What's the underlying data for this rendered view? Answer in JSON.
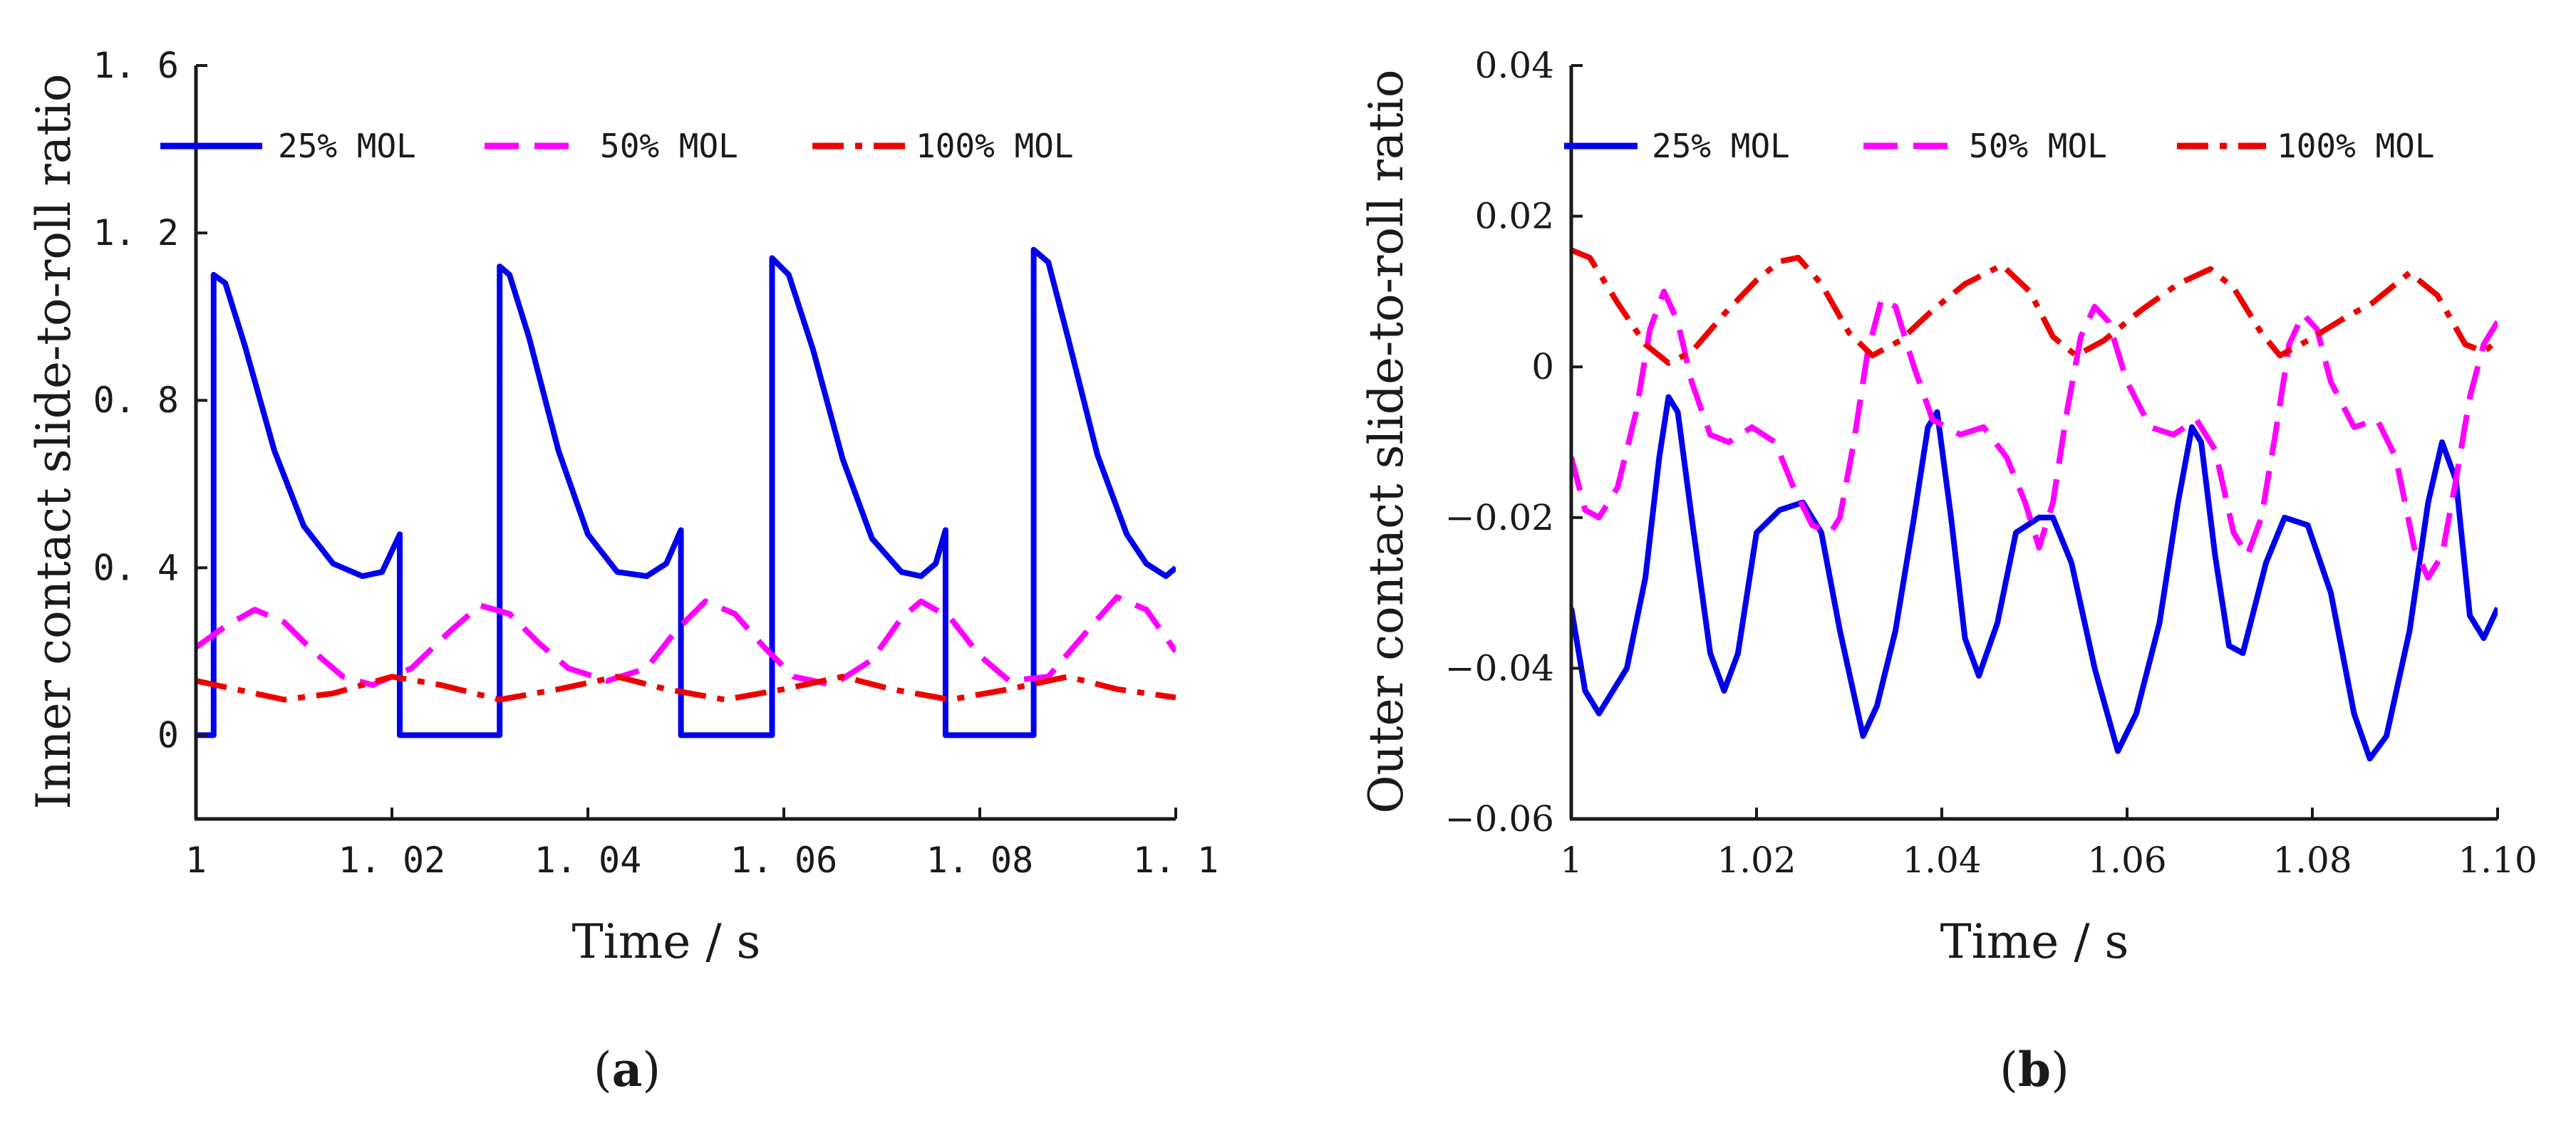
{
  "figure": {
    "panel_a_label": "a",
    "panel_b_label": "b"
  },
  "chart_data": [
    {
      "id": "a",
      "type": "line",
      "title": "",
      "xlabel": "Time / s",
      "ylabel": "Inner contact slide-to-roll ratio",
      "xlim": [
        1.0,
        1.1
      ],
      "ylim": [
        -0.2,
        1.6
      ],
      "xticks": [
        1.0,
        1.02,
        1.04,
        1.06,
        1.08,
        1.1
      ],
      "xtick_labels": [
        "1",
        "1. 02",
        "1. 04",
        "1. 06",
        "1. 08",
        "1. 1"
      ],
      "yticks": [
        0,
        0.4,
        0.8,
        1.2,
        1.6
      ],
      "ytick_labels": [
        "0",
        "0. 4",
        "0. 8",
        "1. 2",
        "1. 6"
      ],
      "series": [
        {
          "name": "25% MOL",
          "color": "#0000ee",
          "dash": "solid",
          "points": [
            [
              1.0,
              0
            ],
            [
              1.0018,
              0
            ],
            [
              1.0018,
              1.1
            ],
            [
              1.003,
              1.08
            ],
            [
              1.005,
              0.93
            ],
            [
              1.008,
              0.68
            ],
            [
              1.011,
              0.5
            ],
            [
              1.014,
              0.41
            ],
            [
              1.017,
              0.38
            ],
            [
              1.019,
              0.39
            ],
            [
              1.0208,
              0.48
            ],
            [
              1.0208,
              0
            ],
            [
              1.031,
              0
            ],
            [
              1.031,
              1.12
            ],
            [
              1.032,
              1.1
            ],
            [
              1.034,
              0.95
            ],
            [
              1.037,
              0.68
            ],
            [
              1.04,
              0.48
            ],
            [
              1.043,
              0.39
            ],
            [
              1.046,
              0.38
            ],
            [
              1.048,
              0.41
            ],
            [
              1.0495,
              0.49
            ],
            [
              1.0495,
              0
            ],
            [
              1.0588,
              0
            ],
            [
              1.0588,
              1.14
            ],
            [
              1.0605,
              1.1
            ],
            [
              1.063,
              0.92
            ],
            [
              1.066,
              0.66
            ],
            [
              1.069,
              0.47
            ],
            [
              1.072,
              0.39
            ],
            [
              1.074,
              0.38
            ],
            [
              1.0755,
              0.41
            ],
            [
              1.0765,
              0.49
            ],
            [
              1.0765,
              0
            ],
            [
              1.0855,
              0
            ],
            [
              1.0855,
              1.16
            ],
            [
              1.087,
              1.13
            ],
            [
              1.089,
              0.95
            ],
            [
              1.092,
              0.67
            ],
            [
              1.095,
              0.48
            ],
            [
              1.097,
              0.41
            ],
            [
              1.099,
              0.38
            ],
            [
              1.1,
              0.4
            ]
          ]
        },
        {
          "name": "50% MOL",
          "color": "#ff00ff",
          "dash": "dash",
          "points": [
            [
              1.0,
              0.21
            ],
            [
              1.003,
              0.26
            ],
            [
              1.006,
              0.3
            ],
            [
              1.009,
              0.27
            ],
            [
              1.012,
              0.2
            ],
            [
              1.015,
              0.14
            ],
            [
              1.018,
              0.12
            ],
            [
              1.022,
              0.16
            ],
            [
              1.026,
              0.25
            ],
            [
              1.029,
              0.31
            ],
            [
              1.032,
              0.29
            ],
            [
              1.035,
              0.22
            ],
            [
              1.038,
              0.16
            ],
            [
              1.042,
              0.13
            ],
            [
              1.046,
              0.16
            ],
            [
              1.049,
              0.25
            ],
            [
              1.052,
              0.32
            ],
            [
              1.055,
              0.29
            ],
            [
              1.058,
              0.21
            ],
            [
              1.061,
              0.14
            ],
            [
              1.065,
              0.12
            ],
            [
              1.069,
              0.18
            ],
            [
              1.072,
              0.28
            ],
            [
              1.074,
              0.32
            ],
            [
              1.077,
              0.28
            ],
            [
              1.08,
              0.19
            ],
            [
              1.083,
              0.13
            ],
            [
              1.087,
              0.14
            ],
            [
              1.091,
              0.25
            ],
            [
              1.094,
              0.33
            ],
            [
              1.097,
              0.3
            ],
            [
              1.1,
              0.2
            ]
          ]
        },
        {
          "name": "100% MOL",
          "color": "#ee0000",
          "dash": "dashdot",
          "points": [
            [
              1.0,
              0.13
            ],
            [
              1.004,
              0.11
            ],
            [
              1.009,
              0.085
            ],
            [
              1.014,
              0.1
            ],
            [
              1.02,
              0.14
            ],
            [
              1.025,
              0.12
            ],
            [
              1.031,
              0.085
            ],
            [
              1.037,
              0.11
            ],
            [
              1.043,
              0.14
            ],
            [
              1.048,
              0.11
            ],
            [
              1.054,
              0.085
            ],
            [
              1.06,
              0.11
            ],
            [
              1.066,
              0.14
            ],
            [
              1.071,
              0.11
            ],
            [
              1.077,
              0.085
            ],
            [
              1.083,
              0.11
            ],
            [
              1.089,
              0.14
            ],
            [
              1.094,
              0.11
            ],
            [
              1.1,
              0.09
            ]
          ]
        }
      ]
    },
    {
      "id": "b",
      "type": "line",
      "title": "",
      "xlabel": "Time / s",
      "ylabel": "Outer contact slide-to-roll ratio",
      "xlim": [
        1.0,
        1.1
      ],
      "ylim": [
        -0.06,
        0.04
      ],
      "xticks": [
        1.0,
        1.02,
        1.04,
        1.06,
        1.08,
        1.1
      ],
      "xtick_labels": [
        "1",
        "1.02",
        "1.04",
        "1.06",
        "1.08",
        "1.10"
      ],
      "yticks": [
        -0.06,
        -0.04,
        -0.02,
        0,
        0.02,
        0.04
      ],
      "ytick_labels": [
        "−0.06",
        "−0.04",
        "−0.02",
        "0",
        "0.02",
        "0.04"
      ],
      "series": [
        {
          "name": "25% MOL",
          "color": "#0000ee",
          "dash": "solid",
          "points": [
            [
              1.0,
              -0.032
            ],
            [
              1.0015,
              -0.043
            ],
            [
              1.003,
              -0.046
            ],
            [
              1.006,
              -0.04
            ],
            [
              1.008,
              -0.028
            ],
            [
              1.0095,
              -0.012
            ],
            [
              1.0105,
              -0.004
            ],
            [
              1.0115,
              -0.006
            ],
            [
              1.013,
              -0.02
            ],
            [
              1.015,
              -0.038
            ],
            [
              1.0165,
              -0.043
            ],
            [
              1.018,
              -0.038
            ],
            [
              1.02,
              -0.022
            ],
            [
              1.0225,
              -0.019
            ],
            [
              1.025,
              -0.018
            ],
            [
              1.027,
              -0.022
            ],
            [
              1.029,
              -0.035
            ],
            [
              1.0315,
              -0.049
            ],
            [
              1.033,
              -0.045
            ],
            [
              1.035,
              -0.035
            ],
            [
              1.037,
              -0.02
            ],
            [
              1.0385,
              -0.008
            ],
            [
              1.0395,
              -0.006
            ],
            [
              1.041,
              -0.02
            ],
            [
              1.0425,
              -0.036
            ],
            [
              1.044,
              -0.041
            ],
            [
              1.046,
              -0.034
            ],
            [
              1.048,
              -0.022
            ],
            [
              1.0505,
              -0.02
            ],
            [
              1.052,
              -0.02
            ],
            [
              1.054,
              -0.026
            ],
            [
              1.0565,
              -0.04
            ],
            [
              1.059,
              -0.051
            ],
            [
              1.061,
              -0.046
            ],
            [
              1.0635,
              -0.034
            ],
            [
              1.0655,
              -0.018
            ],
            [
              1.067,
              -0.008
            ],
            [
              1.068,
              -0.01
            ],
            [
              1.0695,
              -0.025
            ],
            [
              1.071,
              -0.037
            ],
            [
              1.0725,
              -0.038
            ],
            [
              1.075,
              -0.026
            ],
            [
              1.077,
              -0.02
            ],
            [
              1.0795,
              -0.021
            ],
            [
              1.082,
              -0.03
            ],
            [
              1.0845,
              -0.046
            ],
            [
              1.0862,
              -0.052
            ],
            [
              1.088,
              -0.049
            ],
            [
              1.0905,
              -0.035
            ],
            [
              1.0925,
              -0.018
            ],
            [
              1.094,
              -0.01
            ],
            [
              1.0955,
              -0.015
            ],
            [
              1.097,
              -0.033
            ],
            [
              1.0985,
              -0.036
            ],
            [
              1.1,
              -0.032
            ]
          ]
        },
        {
          "name": "50% MOL",
          "color": "#ff00ff",
          "dash": "dash",
          "points": [
            [
              1.0,
              -0.012
            ],
            [
              1.0015,
              -0.019
            ],
            [
              1.003,
              -0.02
            ],
            [
              1.005,
              -0.016
            ],
            [
              1.007,
              -0.006
            ],
            [
              1.0085,
              0.005
            ],
            [
              1.01,
              0.01
            ],
            [
              1.0115,
              0.006
            ],
            [
              1.013,
              -0.002
            ],
            [
              1.015,
              -0.009
            ],
            [
              1.017,
              -0.01
            ],
            [
              1.0195,
              -0.008
            ],
            [
              1.022,
              -0.01
            ],
            [
              1.024,
              -0.016
            ],
            [
              1.026,
              -0.021
            ],
            [
              1.028,
              -0.022
            ],
            [
              1.029,
              -0.02
            ],
            [
              1.0305,
              -0.01
            ],
            [
              1.032,
              0.002
            ],
            [
              1.0335,
              0.009
            ],
            [
              1.035,
              0.008
            ],
            [
              1.037,
              0.0
            ],
            [
              1.039,
              -0.007
            ],
            [
              1.042,
              -0.009
            ],
            [
              1.0445,
              -0.008
            ],
            [
              1.047,
              -0.012
            ],
            [
              1.049,
              -0.018
            ],
            [
              1.0505,
              -0.024
            ],
            [
              1.052,
              -0.018
            ],
            [
              1.0535,
              -0.006
            ],
            [
              1.055,
              0.004
            ],
            [
              1.0565,
              0.008
            ],
            [
              1.058,
              0.006
            ],
            [
              1.06,
              -0.002
            ],
            [
              1.0625,
              -0.008
            ],
            [
              1.065,
              -0.009
            ],
            [
              1.0675,
              -0.007
            ],
            [
              1.0695,
              -0.011
            ],
            [
              1.0715,
              -0.022
            ],
            [
              1.073,
              -0.025
            ],
            [
              1.0745,
              -0.02
            ],
            [
              1.076,
              -0.009
            ],
            [
              1.0775,
              0.003
            ],
            [
              1.079,
              0.007
            ],
            [
              1.0805,
              0.005
            ],
            [
              1.082,
              -0.002
            ],
            [
              1.0845,
              -0.008
            ],
            [
              1.087,
              -0.007
            ],
            [
              1.089,
              -0.012
            ],
            [
              1.091,
              -0.024
            ],
            [
              1.0925,
              -0.028
            ],
            [
              1.094,
              -0.025
            ],
            [
              1.0955,
              -0.015
            ],
            [
              1.097,
              -0.004
            ],
            [
              1.0985,
              0.003
            ],
            [
              1.1,
              0.006
            ]
          ]
        },
        {
          "name": "100% MOL",
          "color": "#ee0000",
          "dash": "dashdot",
          "points": [
            [
              1.0,
              0.0155
            ],
            [
              1.002,
              0.0145
            ],
            [
              1.005,
              0.0085
            ],
            [
              1.008,
              0.003
            ],
            [
              1.0105,
              0.0005
            ],
            [
              1.013,
              0.002
            ],
            [
              1.0165,
              0.007
            ],
            [
              1.02,
              0.0115
            ],
            [
              1.0225,
              0.014
            ],
            [
              1.0245,
              0.0145
            ],
            [
              1.027,
              0.011
            ],
            [
              1.03,
              0.0045
            ],
            [
              1.0325,
              0.0015
            ],
            [
              1.0355,
              0.0035
            ],
            [
              1.039,
              0.0075
            ],
            [
              1.0425,
              0.011
            ],
            [
              1.0465,
              0.0135
            ],
            [
              1.0495,
              0.01
            ],
            [
              1.052,
              0.004
            ],
            [
              1.0545,
              0.0015
            ],
            [
              1.0575,
              0.0035
            ],
            [
              1.0615,
              0.0075
            ],
            [
              1.0655,
              0.011
            ],
            [
              1.069,
              0.013
            ],
            [
              1.0715,
              0.0105
            ],
            [
              1.0745,
              0.0045
            ],
            [
              1.0765,
              0.0015
            ],
            [
              1.0795,
              0.0035
            ],
            [
              1.0835,
              0.0065
            ],
            [
              1.0865,
              0.0085
            ],
            [
              1.0905,
              0.0125
            ],
            [
              1.0935,
              0.0095
            ],
            [
              1.0965,
              0.003
            ],
            [
              1.0985,
              0.002
            ],
            [
              1.1,
              0.0035
            ]
          ]
        }
      ]
    }
  ]
}
